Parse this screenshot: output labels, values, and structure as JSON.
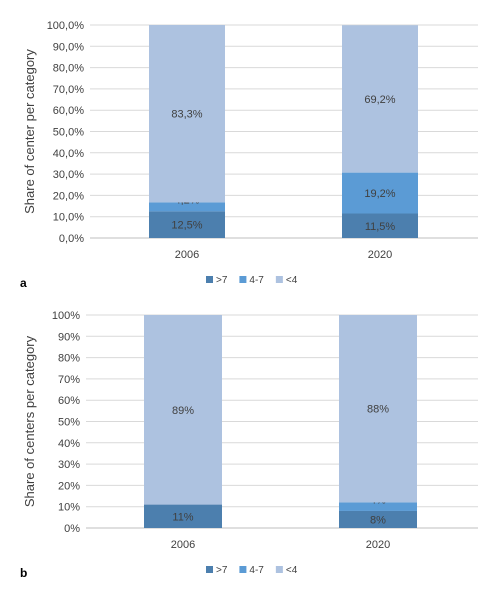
{
  "colors": {
    "gt7": "#4c7fae",
    "mid": "#5b9bd5",
    "lt4": "#adc2e0",
    "grid": "#d9d9d9",
    "axis": "#bfbfbf"
  },
  "chart_data": [
    {
      "panel_label": "a",
      "type": "bar",
      "stacked": true,
      "categories": [
        "2006",
        "2020"
      ],
      "ylabel": "Share of center per category",
      "ylim": [
        0,
        100
      ],
      "y_ticks": [
        "0,0%",
        "10,0%",
        "20,0%",
        "30,0%",
        "40,0%",
        "50,0%",
        "60,0%",
        "70,0%",
        "80,0%",
        "90,0%",
        "100,0%"
      ],
      "grid": true,
      "legend_position": "bottom",
      "series": [
        {
          "name": ">7",
          "color": "#4c7fae",
          "values": [
            12.5,
            11.5
          ],
          "labels": [
            "12,5%",
            "11,5%"
          ]
        },
        {
          "name": "4-7",
          "color": "#5b9bd5",
          "values": [
            4.2,
            19.2
          ],
          "labels": [
            "4,2%",
            "19,2%"
          ]
        },
        {
          "name": "<4",
          "color": "#adc2e0",
          "values": [
            83.3,
            69.2
          ],
          "labels": [
            "83,3%",
            "69,2%"
          ]
        }
      ]
    },
    {
      "panel_label": "b",
      "type": "bar",
      "stacked": true,
      "categories": [
        "2006",
        "2020"
      ],
      "ylabel": "Share of centers per category",
      "ylim": [
        0,
        100
      ],
      "y_ticks": [
        "0%",
        "10%",
        "20%",
        "30%",
        "40%",
        "50%",
        "60%",
        "70%",
        "80%",
        "90%",
        "100%"
      ],
      "grid": true,
      "legend_position": "bottom",
      "series": [
        {
          "name": ">7",
          "color": "#4c7fae",
          "values": [
            11,
            8
          ],
          "labels": [
            "11%",
            "8%"
          ]
        },
        {
          "name": "4-7",
          "color": "#5b9bd5",
          "values": [
            0,
            4
          ],
          "labels": [
            "0%",
            "4%"
          ]
        },
        {
          "name": "<4",
          "color": "#adc2e0",
          "values": [
            89,
            88
          ],
          "labels": [
            "89%",
            "88%"
          ]
        }
      ]
    }
  ]
}
